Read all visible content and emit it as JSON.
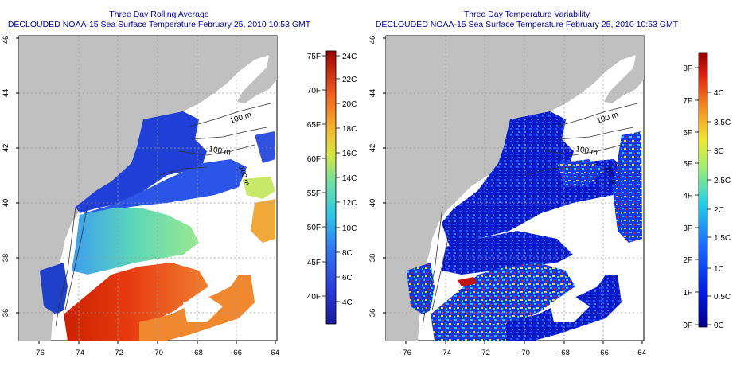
{
  "left_panel": {
    "title_line1": "Three Day Rolling Average",
    "title_line2": "DECLOUDED NOAA-15 Sea Surface Temperature February 25, 2010 10:53 GMT",
    "contour_labels": [
      "100 m",
      "100 m",
      "100 m"
    ],
    "lat_ticks": [
      "36",
      "38",
      "40",
      "42",
      "44",
      "46"
    ],
    "lon_ticks": [
      "-76",
      "-74",
      "-72",
      "-70",
      "-68",
      "-66",
      "-64"
    ],
    "colorbar": {
      "fahrenheit_ticks": [
        "40F",
        "45F",
        "50F",
        "55F",
        "60F",
        "65F",
        "70F",
        "75F"
      ],
      "celsius_ticks": [
        "4C",
        "6C",
        "8C",
        "10C",
        "12C",
        "14C",
        "16C",
        "18C",
        "20C",
        "22C",
        "24C"
      ]
    }
  },
  "right_panel": {
    "title_line1": "Three Day Temperature Variability",
    "title_line2": "DECLOUDED NOAA-15 Sea Surface Temperature February 25, 2010 10:53 GMT",
    "contour_labels": [
      "100 m",
      "100 m",
      "100 m"
    ],
    "lat_ticks": [
      "36",
      "38",
      "40",
      "42",
      "44",
      "46"
    ],
    "lon_ticks": [
      "-76",
      "-74",
      "-72",
      "-70",
      "-68",
      "-66",
      "-64"
    ],
    "colorbar": {
      "fahrenheit_ticks": [
        "0F",
        "1F",
        "2F",
        "3F",
        "4F",
        "5F",
        "6F",
        "7F",
        "8F"
      ],
      "celsius_ticks": [
        "0C",
        "0.5C",
        "1C",
        "1.5C",
        "2C",
        "2.5C",
        "3C",
        "3.5C",
        "4C"
      ]
    }
  },
  "colors": {
    "land": "#c0c0c0",
    "title": "#0000aa",
    "grid": "#999999"
  }
}
